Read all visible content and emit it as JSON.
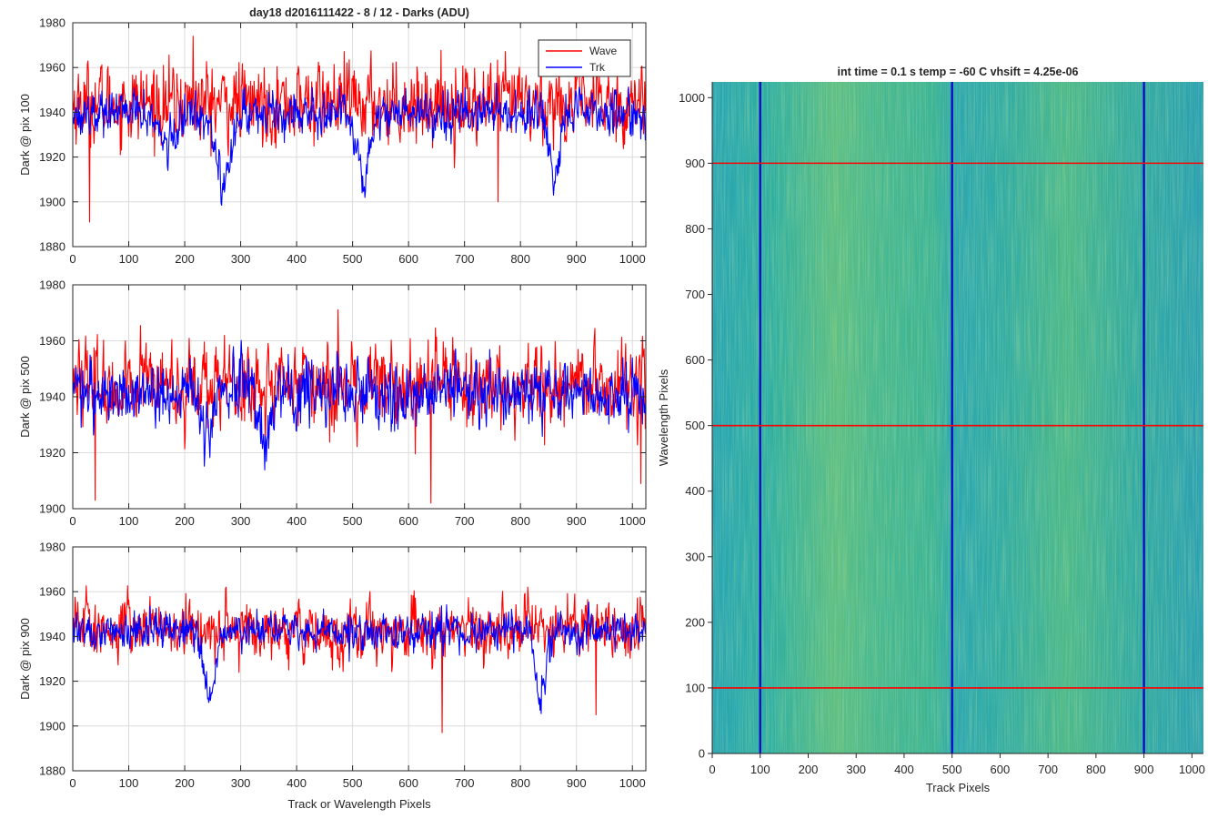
{
  "chart_data": [
    {
      "type": "line",
      "title": "day18 d2016111422 - 8 / 12 - Darks (ADU)",
      "xlabel": "",
      "ylabel": "Dark @ pix 100",
      "xlim": [
        0,
        1024
      ],
      "ylim": [
        1880,
        1980
      ],
      "xticks": [
        0,
        100,
        200,
        300,
        400,
        500,
        600,
        700,
        800,
        900,
        1000
      ],
      "yticks": [
        1880,
        1900,
        1920,
        1940,
        1960,
        1980
      ],
      "grid": true,
      "legend": {
        "position": "top-right",
        "entries": [
          "Wave",
          "Trk"
        ]
      },
      "series": [
        {
          "name": "Wave",
          "color": "#ff0000",
          "points": 1024,
          "mean": 1944,
          "noise": 11,
          "features": [
            [
              215,
              1974
            ],
            [
              30,
              1891
            ],
            [
              760,
              1900
            ]
          ]
        },
        {
          "name": "Trk",
          "color": "#0000ff",
          "points": 1024,
          "mean": 1940,
          "noise": 6,
          "dips": [
            [
              170,
              1925,
              22
            ],
            [
              270,
              1908,
              18
            ],
            [
              520,
              1912,
              16
            ],
            [
              860,
              1906,
              14
            ]
          ]
        }
      ]
    },
    {
      "type": "line",
      "title": "",
      "xlabel": "",
      "ylabel": "Dark @ pix 500",
      "xlim": [
        0,
        1024
      ],
      "ylim": [
        1900,
        1980
      ],
      "xticks": [
        0,
        100,
        200,
        300,
        400,
        500,
        600,
        700,
        800,
        900,
        1000
      ],
      "yticks": [
        1900,
        1920,
        1940,
        1960,
        1980
      ],
      "grid": true,
      "series": [
        {
          "name": "Wave",
          "color": "#ff0000",
          "points": 1024,
          "mean": 1944,
          "noise": 9,
          "features": [
            [
              40,
              1903
            ],
            [
              640,
              1902
            ],
            [
              1015,
              1909
            ]
          ]
        },
        {
          "name": "Trk",
          "color": "#0000ff",
          "points": 1024,
          "mean": 1942,
          "noise": 7,
          "dips": [
            [
              240,
              1922,
              12
            ],
            [
              340,
              1925,
              14
            ],
            [
              950,
              1936,
              20
            ]
          ]
        }
      ]
    },
    {
      "type": "line",
      "title": "",
      "xlabel": "Track or Wavelength Pixels",
      "ylabel": "Dark @ pix 900",
      "xlim": [
        0,
        1024
      ],
      "ylim": [
        1880,
        1980
      ],
      "xticks": [
        0,
        100,
        200,
        300,
        400,
        500,
        600,
        700,
        800,
        900,
        1000
      ],
      "yticks": [
        1880,
        1900,
        1920,
        1940,
        1960,
        1980
      ],
      "grid": true,
      "series": [
        {
          "name": "Wave",
          "color": "#ff0000",
          "points": 1024,
          "mean": 1943,
          "noise": 8,
          "features": [
            [
              660,
              1897
            ],
            [
              935,
              1905
            ]
          ]
        },
        {
          "name": "Trk",
          "color": "#0000ff",
          "points": 1024,
          "mean": 1942,
          "noise": 5,
          "dips": [
            [
              245,
              1912,
              14
            ],
            [
              835,
              1910,
              12
            ]
          ]
        }
      ]
    },
    {
      "type": "heatmap",
      "title": "int time = 0.1 s    temp = -60 C    vhsift = 4.25e-06",
      "xlabel": "Track Pixels",
      "ylabel": "Wavelength Pixels",
      "xlim": [
        0,
        1024
      ],
      "ylim": [
        0,
        1024
      ],
      "xticks": [
        0,
        100,
        200,
        300,
        400,
        500,
        600,
        700,
        800,
        900,
        1000
      ],
      "yticks": [
        0,
        100,
        200,
        300,
        400,
        500,
        600,
        700,
        800,
        900,
        1000
      ],
      "colormap": [
        "#2b9cb8",
        "#3fb394",
        "#8dc86a"
      ],
      "vertical_markers": {
        "color": "#0000cc",
        "x": [
          100,
          500,
          900
        ]
      },
      "horizontal_markers": {
        "color": "#ff0000",
        "y": [
          100,
          500,
          900
        ]
      }
    }
  ]
}
